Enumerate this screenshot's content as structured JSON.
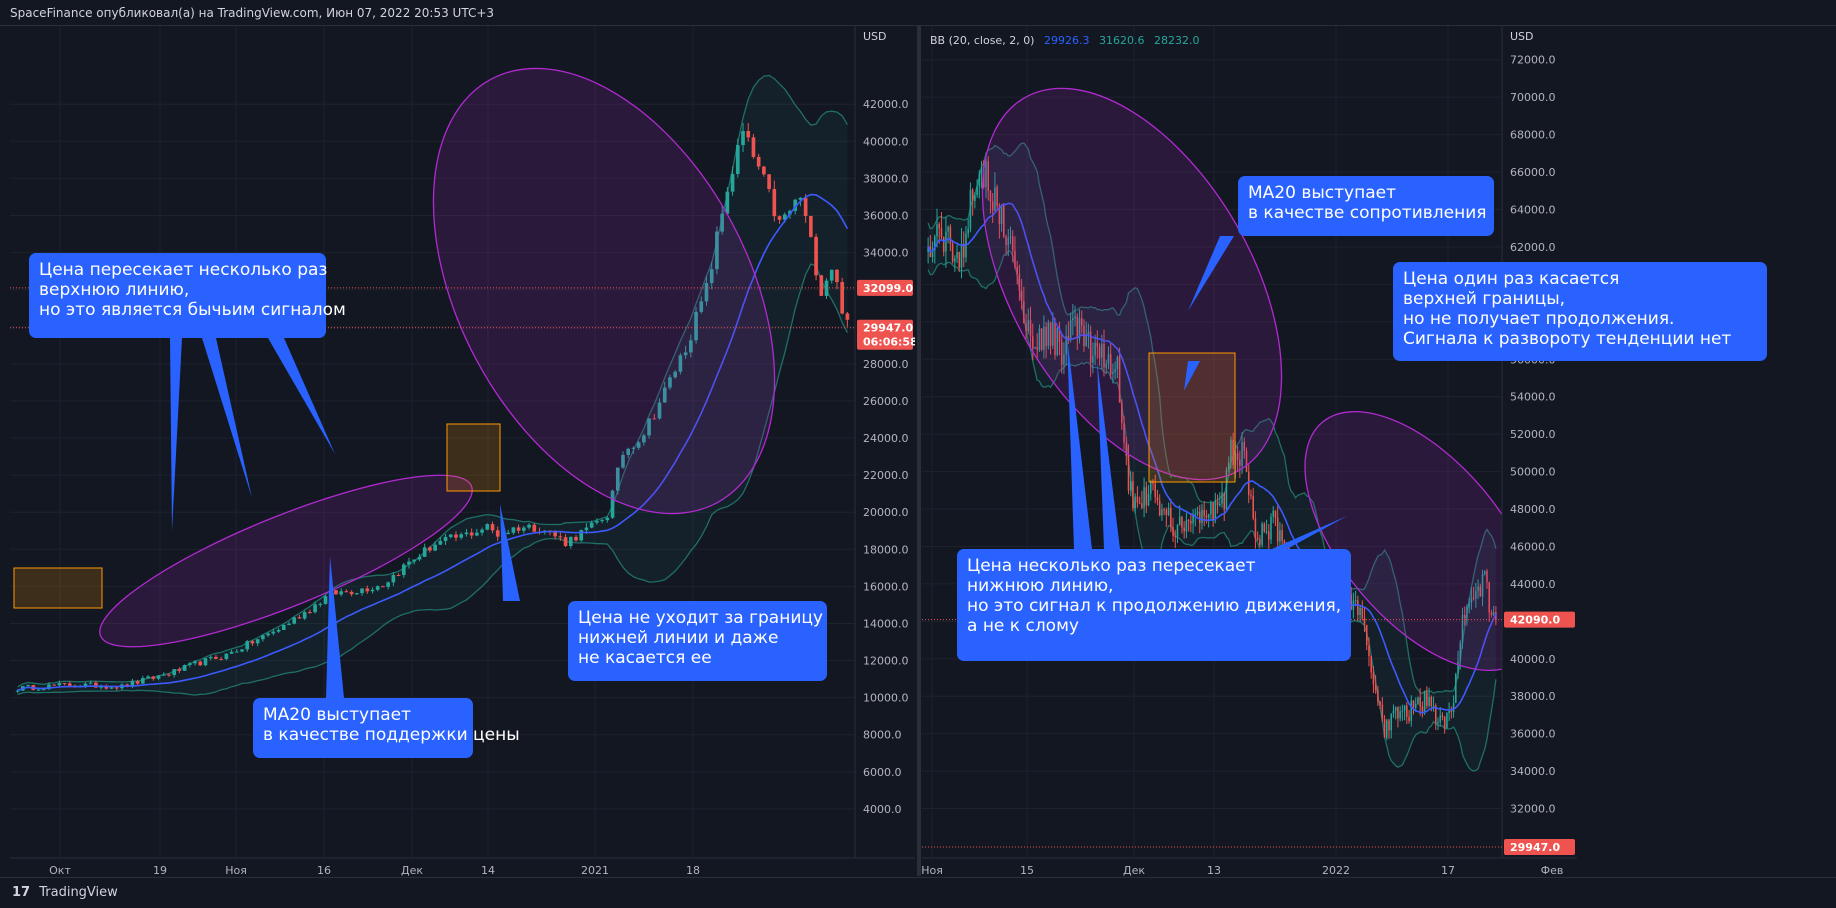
{
  "header": {
    "publish_line": "SpaceFinance опубликовал(а) на TradingView.com, Июн 07, 2022 20:53 UTC+3"
  },
  "footer": {
    "brand": "TradingView",
    "logo_icon": "tradingview-logo-icon"
  },
  "colors": {
    "background": "#131722",
    "up": "#26a69a",
    "down": "#ef5350",
    "ma": "#3d5afe",
    "band": "#1f6f66",
    "callout": "#2962ff",
    "ellipse": "#9c27b0",
    "box": "#ff9800"
  },
  "chart_data": [
    {
      "type": "candlestick",
      "title": "",
      "currency_label": "USD",
      "indicator": "",
      "y_ticks": [
        "4000.0",
        "6000.0",
        "8000.0",
        "10000.0",
        "12000.0",
        "14000.0",
        "16000.0",
        "18000.0",
        "20000.0",
        "22000.0",
        "24000.0",
        "26000.0",
        "28000.0",
        "30000.0",
        "32000.0",
        "34000.0",
        "36000.0",
        "38000.0",
        "40000.0",
        "42000.0"
      ],
      "ylim": [
        2000,
        44600
      ],
      "x_ticks": [
        "Окт",
        "19",
        "Ноя",
        "16",
        "Дек",
        "14",
        "2021",
        "18"
      ],
      "price_tags": [
        {
          "value": 32099.0,
          "label": "32099.0",
          "sub": ""
        },
        {
          "value": 29947.0,
          "label": "29947.0",
          "sub": "06:06:58"
        }
      ],
      "close_anchors": [
        [
          0,
          10500
        ],
        [
          10,
          10700
        ],
        [
          20,
          10600
        ],
        [
          25,
          11000
        ],
        [
          30,
          11400
        ],
        [
          35,
          11900
        ],
        [
          40,
          12300
        ],
        [
          45,
          13000
        ],
        [
          50,
          13700
        ],
        [
          55,
          14600
        ],
        [
          60,
          15600
        ],
        [
          65,
          15800
        ],
        [
          70,
          16100
        ],
        [
          75,
          17300
        ],
        [
          80,
          18300
        ],
        [
          85,
          18700
        ],
        [
          90,
          19200
        ],
        [
          92,
          18800
        ],
        [
          96,
          19200
        ],
        [
          100,
          19200
        ],
        [
          105,
          18400
        ],
        [
          110,
          19200
        ],
        [
          113,
          19900
        ],
        [
          116,
          23200
        ],
        [
          120,
          24300
        ],
        [
          124,
          26500
        ],
        [
          128,
          28900
        ],
        [
          132,
          32000
        ],
        [
          136,
          37500
        ],
        [
          139,
          40400
        ],
        [
          142,
          38500
        ],
        [
          146,
          35500
        ],
        [
          150,
          37000
        ],
        [
          154,
          32000
        ],
        [
          156,
          33300
        ],
        [
          159,
          30000
        ]
      ],
      "annotations": [
        {
          "lines": [
            "Цена пересекает несколько раз",
            "верхнюю линию,",
            "но это является бычьим сигналом"
          ]
        },
        {
          "lines": [
            "MA20 выступает",
            "в качестве поддержки цены"
          ]
        },
        {
          "lines": [
            "Цена не уходит за границу",
            "нижней линии и даже",
            "не касается ее"
          ]
        }
      ]
    },
    {
      "type": "candlestick",
      "title": "",
      "currency_label": "USD",
      "indicator": "BB (20, close, 2, 0)",
      "indicator_values": [
        "29926.3",
        "31620.6",
        "28232.0"
      ],
      "indicator_value_colors": [
        "#2962ff",
        "#26a69a",
        "#26a69a"
      ],
      "y_ticks": [
        "32000.0",
        "34000.0",
        "36000.0",
        "38000.0",
        "40000.0",
        "42000.0",
        "44000.0",
        "46000.0",
        "48000.0",
        "50000.0",
        "52000.0",
        "54000.0",
        "56000.0",
        "58000.0",
        "60000.0",
        "62000.0",
        "64000.0",
        "66000.0",
        "68000.0",
        "70000.0",
        "72000.0"
      ],
      "ylim": [
        30000,
        72200
      ],
      "x_ticks": [
        "Ноя",
        "15",
        "Дек",
        "13",
        "2022",
        "17",
        "Фев"
      ],
      "price_tags": [
        {
          "value": 42090.0,
          "label": "42090.0",
          "sub": ""
        },
        {
          "value": 29947.0,
          "label": "29947.0",
          "sub": ""
        }
      ],
      "close_anchors": [
        [
          0,
          61500
        ],
        [
          5,
          63000
        ],
        [
          10,
          62000
        ],
        [
          15,
          61500
        ],
        [
          20,
          65500
        ],
        [
          25,
          66000
        ],
        [
          30,
          64500
        ],
        [
          35,
          63000
        ],
        [
          40,
          60000
        ],
        [
          45,
          57500
        ],
        [
          50,
          57000
        ],
        [
          55,
          57500
        ],
        [
          60,
          56500
        ],
        [
          65,
          58000
        ],
        [
          70,
          57000
        ],
        [
          75,
          56000
        ],
        [
          80,
          56000
        ],
        [
          85,
          55500
        ],
        [
          90,
          49000
        ],
        [
          95,
          48500
        ],
        [
          100,
          49000
        ],
        [
          105,
          48000
        ],
        [
          110,
          47000
        ],
        [
          115,
          47500
        ],
        [
          120,
          47500
        ],
        [
          125,
          47800
        ],
        [
          130,
          48000
        ],
        [
          133,
          48500
        ],
        [
          136,
          51000
        ],
        [
          140,
          51000
        ],
        [
          143,
          50500
        ],
        [
          146,
          47000
        ],
        [
          150,
          46500
        ],
        [
          155,
          47500
        ],
        [
          160,
          46000
        ],
        [
          165,
          43500
        ],
        [
          170,
          42800
        ],
        [
          175,
          43000
        ],
        [
          180,
          42500
        ],
        [
          185,
          43000
        ],
        [
          190,
          43000
        ],
        [
          195,
          42000
        ],
        [
          200,
          39000
        ],
        [
          205,
          36000
        ],
        [
          210,
          37500
        ],
        [
          215,
          37000
        ],
        [
          220,
          37500
        ],
        [
          225,
          38000
        ],
        [
          230,
          36500
        ],
        [
          235,
          37300
        ],
        [
          240,
          42000
        ],
        [
          245,
          43000
        ],
        [
          250,
          44300
        ],
        [
          252,
          43000
        ],
        [
          255,
          42090
        ]
      ],
      "annotations": [
        {
          "lines": [
            "MA20 выступает",
            "в качестве сопротивления"
          ]
        },
        {
          "lines": [
            "Цена один раз касается",
            "верхней границы,",
            "но не получает продолжения.",
            "Сигнала к развороту тенденции нет"
          ]
        },
        {
          "lines": [
            "Цена несколько раз пересекает",
            "нижнюю линию,",
            "но это сигнал к продолжению движения,",
            "а не к слому"
          ]
        }
      ]
    }
  ]
}
